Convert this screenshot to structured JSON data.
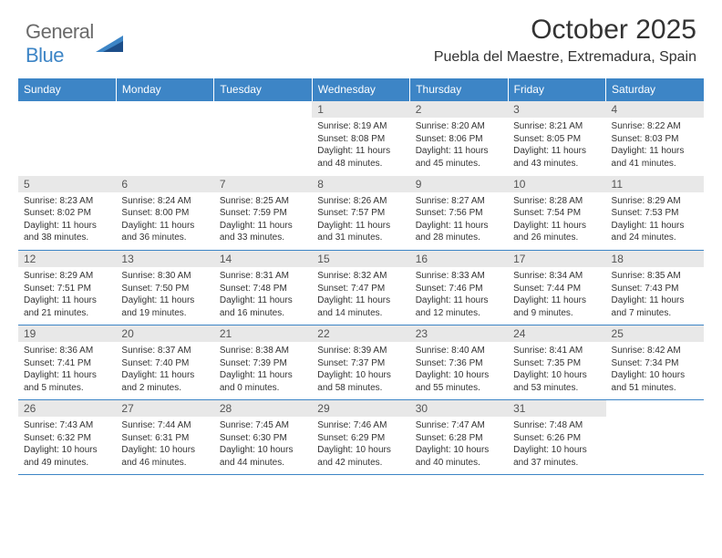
{
  "type": "calendar-table",
  "logo": {
    "text1": "General",
    "text2": "Blue"
  },
  "colors": {
    "accent": "#3d85c6",
    "header_bg": "#3d85c6",
    "header_text": "#ffffff",
    "daynum_bg": "#e8e8e8",
    "border": "#3d85c6",
    "background": "#ffffff",
    "text": "#333333"
  },
  "header": {
    "title": "October 2025",
    "subtitle": "Puebla del Maestre, Extremadura, Spain"
  },
  "typography": {
    "title_fontsize": 30,
    "subtitle_fontsize": 16,
    "dayhead_fontsize": 12,
    "daynum_fontsize": 12,
    "body_fontsize": 10
  },
  "weekdays": [
    "Sunday",
    "Monday",
    "Tuesday",
    "Wednesday",
    "Thursday",
    "Friday",
    "Saturday"
  ],
  "weeks": [
    [
      {
        "day": "",
        "sunrise": "",
        "sunset": "",
        "daylight": ""
      },
      {
        "day": "",
        "sunrise": "",
        "sunset": "",
        "daylight": ""
      },
      {
        "day": "",
        "sunrise": "",
        "sunset": "",
        "daylight": ""
      },
      {
        "day": "1",
        "sunrise": "Sunrise: 8:19 AM",
        "sunset": "Sunset: 8:08 PM",
        "daylight": "Daylight: 11 hours and 48 minutes."
      },
      {
        "day": "2",
        "sunrise": "Sunrise: 8:20 AM",
        "sunset": "Sunset: 8:06 PM",
        "daylight": "Daylight: 11 hours and 45 minutes."
      },
      {
        "day": "3",
        "sunrise": "Sunrise: 8:21 AM",
        "sunset": "Sunset: 8:05 PM",
        "daylight": "Daylight: 11 hours and 43 minutes."
      },
      {
        "day": "4",
        "sunrise": "Sunrise: 8:22 AM",
        "sunset": "Sunset: 8:03 PM",
        "daylight": "Daylight: 11 hours and 41 minutes."
      }
    ],
    [
      {
        "day": "5",
        "sunrise": "Sunrise: 8:23 AM",
        "sunset": "Sunset: 8:02 PM",
        "daylight": "Daylight: 11 hours and 38 minutes."
      },
      {
        "day": "6",
        "sunrise": "Sunrise: 8:24 AM",
        "sunset": "Sunset: 8:00 PM",
        "daylight": "Daylight: 11 hours and 36 minutes."
      },
      {
        "day": "7",
        "sunrise": "Sunrise: 8:25 AM",
        "sunset": "Sunset: 7:59 PM",
        "daylight": "Daylight: 11 hours and 33 minutes."
      },
      {
        "day": "8",
        "sunrise": "Sunrise: 8:26 AM",
        "sunset": "Sunset: 7:57 PM",
        "daylight": "Daylight: 11 hours and 31 minutes."
      },
      {
        "day": "9",
        "sunrise": "Sunrise: 8:27 AM",
        "sunset": "Sunset: 7:56 PM",
        "daylight": "Daylight: 11 hours and 28 minutes."
      },
      {
        "day": "10",
        "sunrise": "Sunrise: 8:28 AM",
        "sunset": "Sunset: 7:54 PM",
        "daylight": "Daylight: 11 hours and 26 minutes."
      },
      {
        "day": "11",
        "sunrise": "Sunrise: 8:29 AM",
        "sunset": "Sunset: 7:53 PM",
        "daylight": "Daylight: 11 hours and 24 minutes."
      }
    ],
    [
      {
        "day": "12",
        "sunrise": "Sunrise: 8:29 AM",
        "sunset": "Sunset: 7:51 PM",
        "daylight": "Daylight: 11 hours and 21 minutes."
      },
      {
        "day": "13",
        "sunrise": "Sunrise: 8:30 AM",
        "sunset": "Sunset: 7:50 PM",
        "daylight": "Daylight: 11 hours and 19 minutes."
      },
      {
        "day": "14",
        "sunrise": "Sunrise: 8:31 AM",
        "sunset": "Sunset: 7:48 PM",
        "daylight": "Daylight: 11 hours and 16 minutes."
      },
      {
        "day": "15",
        "sunrise": "Sunrise: 8:32 AM",
        "sunset": "Sunset: 7:47 PM",
        "daylight": "Daylight: 11 hours and 14 minutes."
      },
      {
        "day": "16",
        "sunrise": "Sunrise: 8:33 AM",
        "sunset": "Sunset: 7:46 PM",
        "daylight": "Daylight: 11 hours and 12 minutes."
      },
      {
        "day": "17",
        "sunrise": "Sunrise: 8:34 AM",
        "sunset": "Sunset: 7:44 PM",
        "daylight": "Daylight: 11 hours and 9 minutes."
      },
      {
        "day": "18",
        "sunrise": "Sunrise: 8:35 AM",
        "sunset": "Sunset: 7:43 PM",
        "daylight": "Daylight: 11 hours and 7 minutes."
      }
    ],
    [
      {
        "day": "19",
        "sunrise": "Sunrise: 8:36 AM",
        "sunset": "Sunset: 7:41 PM",
        "daylight": "Daylight: 11 hours and 5 minutes."
      },
      {
        "day": "20",
        "sunrise": "Sunrise: 8:37 AM",
        "sunset": "Sunset: 7:40 PM",
        "daylight": "Daylight: 11 hours and 2 minutes."
      },
      {
        "day": "21",
        "sunrise": "Sunrise: 8:38 AM",
        "sunset": "Sunset: 7:39 PM",
        "daylight": "Daylight: 11 hours and 0 minutes."
      },
      {
        "day": "22",
        "sunrise": "Sunrise: 8:39 AM",
        "sunset": "Sunset: 7:37 PM",
        "daylight": "Daylight: 10 hours and 58 minutes."
      },
      {
        "day": "23",
        "sunrise": "Sunrise: 8:40 AM",
        "sunset": "Sunset: 7:36 PM",
        "daylight": "Daylight: 10 hours and 55 minutes."
      },
      {
        "day": "24",
        "sunrise": "Sunrise: 8:41 AM",
        "sunset": "Sunset: 7:35 PM",
        "daylight": "Daylight: 10 hours and 53 minutes."
      },
      {
        "day": "25",
        "sunrise": "Sunrise: 8:42 AM",
        "sunset": "Sunset: 7:34 PM",
        "daylight": "Daylight: 10 hours and 51 minutes."
      }
    ],
    [
      {
        "day": "26",
        "sunrise": "Sunrise: 7:43 AM",
        "sunset": "Sunset: 6:32 PM",
        "daylight": "Daylight: 10 hours and 49 minutes."
      },
      {
        "day": "27",
        "sunrise": "Sunrise: 7:44 AM",
        "sunset": "Sunset: 6:31 PM",
        "daylight": "Daylight: 10 hours and 46 minutes."
      },
      {
        "day": "28",
        "sunrise": "Sunrise: 7:45 AM",
        "sunset": "Sunset: 6:30 PM",
        "daylight": "Daylight: 10 hours and 44 minutes."
      },
      {
        "day": "29",
        "sunrise": "Sunrise: 7:46 AM",
        "sunset": "Sunset: 6:29 PM",
        "daylight": "Daylight: 10 hours and 42 minutes."
      },
      {
        "day": "30",
        "sunrise": "Sunrise: 7:47 AM",
        "sunset": "Sunset: 6:28 PM",
        "daylight": "Daylight: 10 hours and 40 minutes."
      },
      {
        "day": "31",
        "sunrise": "Sunrise: 7:48 AM",
        "sunset": "Sunset: 6:26 PM",
        "daylight": "Daylight: 10 hours and 37 minutes."
      },
      {
        "day": "",
        "sunrise": "",
        "sunset": "",
        "daylight": ""
      }
    ]
  ]
}
